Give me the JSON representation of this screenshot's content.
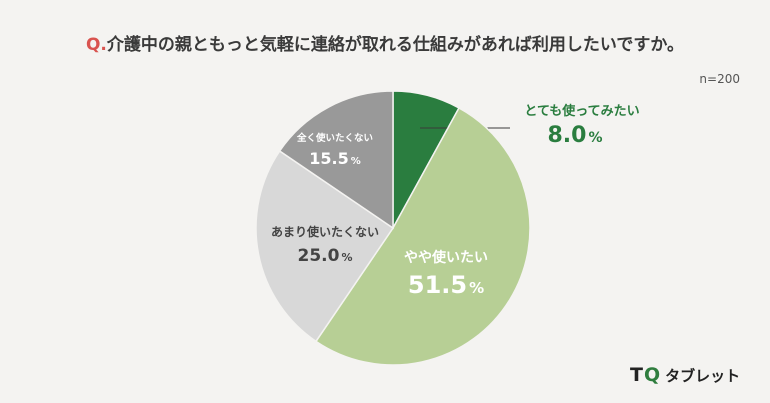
{
  "header": {
    "q_prefix": "Q.",
    "question": "介護中の親ともっと気軽に連絡が取れる仕組みがあれば利用したいですか。",
    "sample": "n=200"
  },
  "logo": {
    "mark_t": "T",
    "mark_q": "Q",
    "name": "タブレット"
  },
  "chart_data": {
    "type": "pie",
    "total_n": 200,
    "start_angle_deg": 0,
    "direction": "clockwise",
    "unit": "%",
    "slices": [
      {
        "label": "とても使ってみたい",
        "value": 8.0,
        "display": "8.0",
        "color": "#2a7d3f"
      },
      {
        "label": "やや使いたい",
        "value": 51.5,
        "display": "51.5",
        "color": "#b7cf95"
      },
      {
        "label": "あまり使いたくない",
        "value": 25.0,
        "display": "25.0",
        "color": "#d8d8d8"
      },
      {
        "label": "全く使いたくない",
        "value": 15.5,
        "display": "15.5",
        "color": "#999999"
      }
    ]
  }
}
